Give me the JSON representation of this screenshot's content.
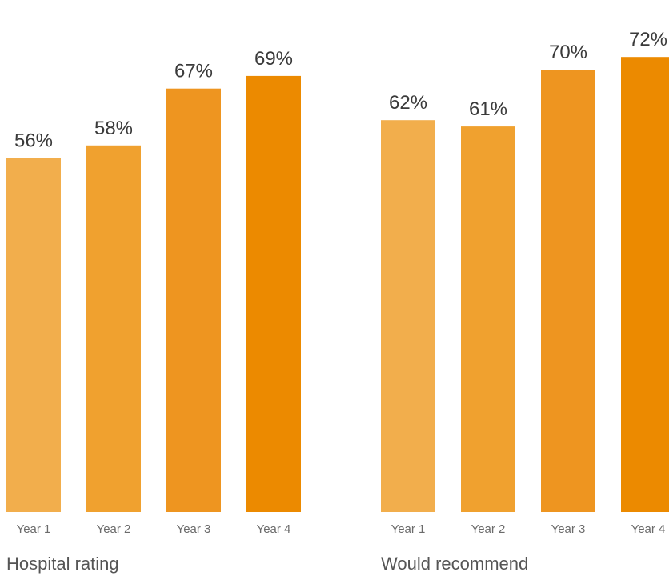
{
  "chart_data": [
    {
      "type": "bar",
      "title": "Hospital rating",
      "categories": [
        "Year 1",
        "Year 2",
        "Year 3",
        "Year 4"
      ],
      "values": [
        56,
        58,
        67,
        69
      ],
      "value_labels": [
        "56%",
        "58%",
        "67%",
        "69%"
      ],
      "ylim": [
        0,
        100
      ],
      "bar_colors": [
        "#F2AE4C",
        "#F0A12F",
        "#EE9520",
        "#EC8A00"
      ],
      "grid": false,
      "legend": "none"
    },
    {
      "type": "bar",
      "title": "Would recommend",
      "categories": [
        "Year 1",
        "Year 2",
        "Year 3",
        "Year 4"
      ],
      "values": [
        62,
        61,
        70,
        72
      ],
      "value_labels": [
        "62%",
        "61%",
        "70%",
        "72%"
      ],
      "ylim": [
        0,
        100
      ],
      "bar_colors": [
        "#F2AE4C",
        "#F0A12F",
        "#EE9520",
        "#EC8A00"
      ],
      "grid": false,
      "legend": "none"
    }
  ]
}
